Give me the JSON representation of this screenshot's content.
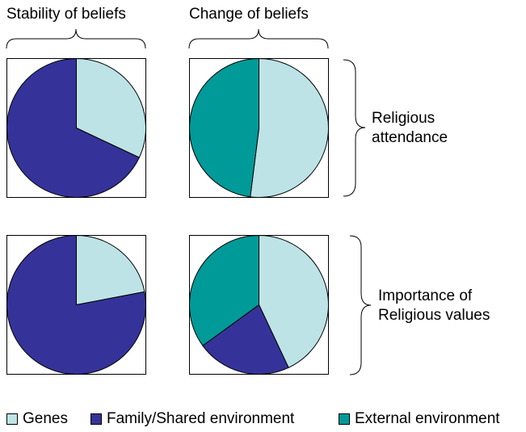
{
  "chart_data": {
    "type": "pie",
    "columns": [
      {
        "label": "Stability of beliefs"
      },
      {
        "label": "Change of beliefs"
      }
    ],
    "rows": [
      {
        "label_lines": [
          "Religious",
          "attendance"
        ]
      },
      {
        "label_lines": [
          "Importance of",
          "Religious values"
        ]
      }
    ],
    "legend": [
      {
        "name": "Genes",
        "color": "#bde3e6"
      },
      {
        "name": "Family/Shared environment",
        "color": "#353399"
      },
      {
        "name": "External environment",
        "color": "#009a99"
      }
    ],
    "pies": [
      {
        "row": 0,
        "column": 0,
        "values": {
          "Genes": 32,
          "Family/Shared environment": 68,
          "External environment": 0
        }
      },
      {
        "row": 0,
        "column": 1,
        "values": {
          "Genes": 52,
          "Family/Shared environment": 0,
          "External environment": 48
        }
      },
      {
        "row": 1,
        "column": 0,
        "values": {
          "Genes": 22,
          "Family/Shared environment": 78,
          "External environment": 0
        }
      },
      {
        "row": 1,
        "column": 1,
        "values": {
          "Genes": 43,
          "Family/Shared environment": 22,
          "External environment": 35
        }
      }
    ]
  }
}
